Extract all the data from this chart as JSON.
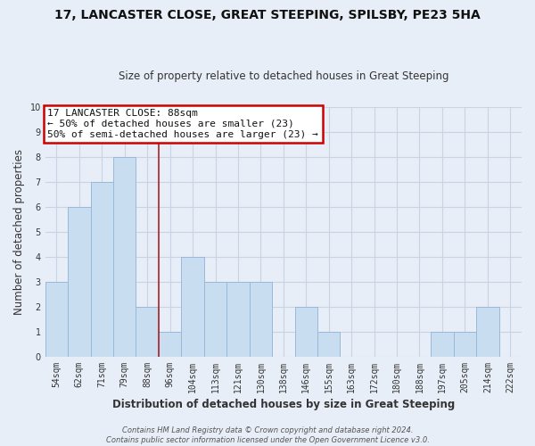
{
  "title": "17, LANCASTER CLOSE, GREAT STEEPING, SPILSBY, PE23 5HA",
  "subtitle": "Size of property relative to detached houses in Great Steeping",
  "xlabel": "Distribution of detached houses by size in Great Steeping",
  "ylabel": "Number of detached properties",
  "bin_labels": [
    "54sqm",
    "62sqm",
    "71sqm",
    "79sqm",
    "88sqm",
    "96sqm",
    "104sqm",
    "113sqm",
    "121sqm",
    "130sqm",
    "138sqm",
    "146sqm",
    "155sqm",
    "163sqm",
    "172sqm",
    "180sqm",
    "188sqm",
    "197sqm",
    "205sqm",
    "214sqm",
    "222sqm"
  ],
  "bar_values": [
    3,
    6,
    7,
    8,
    2,
    1,
    4,
    3,
    3,
    3,
    0,
    2,
    1,
    0,
    0,
    0,
    0,
    1,
    1,
    2,
    0
  ],
  "bar_color": "#c9ddf0",
  "bar_edge_color": "#9ab8d8",
  "highlight_bar_index": 4,
  "highlight_line_color": "#aa2222",
  "annotation_title": "17 LANCASTER CLOSE: 88sqm",
  "annotation_line1": "← 50% of detached houses are smaller (23)",
  "annotation_line2": "50% of semi-detached houses are larger (23) →",
  "annotation_box_color": "#ffffff",
  "annotation_box_edge_color": "#cc0000",
  "ylim": [
    0,
    10
  ],
  "yticks": [
    0,
    1,
    2,
    3,
    4,
    5,
    6,
    7,
    8,
    9,
    10
  ],
  "grid_color": "#c8d4e4",
  "background_color": "#e8eef8",
  "footer_line1": "Contains HM Land Registry data © Crown copyright and database right 2024.",
  "footer_line2": "Contains public sector information licensed under the Open Government Licence v3.0.",
  "title_fontsize": 10,
  "subtitle_fontsize": 8.5,
  "xlabel_fontsize": 8.5,
  "ylabel_fontsize": 8.5,
  "tick_fontsize": 7,
  "footer_fontsize": 6,
  "annotation_fontsize": 8
}
